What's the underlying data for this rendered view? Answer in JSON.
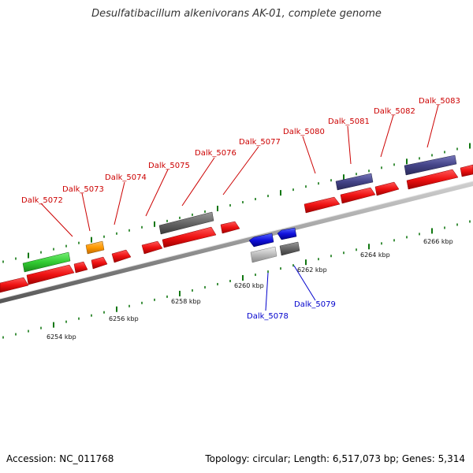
{
  "header": {
    "title": "Desulfatibacillum alkenivorans AK-01, complete genome"
  },
  "footer": {
    "accession": "Accession: NC_011768",
    "summary": "Topology: circular; Length: 6,517,073 bp; Genes: 5,314"
  },
  "colors": {
    "cds_red": "#ee1111",
    "green": "#33cc33",
    "orange": "#ff9900",
    "dark_gray": "#666666",
    "light_gray": "#bbbbbb",
    "blue": "#1111dd",
    "purple": "#444488",
    "tick_green": "#117711",
    "label_red": "#cc0000",
    "label_blue": "#0000cc"
  },
  "scale_labels": [
    {
      "text": "6254 kbp"
    },
    {
      "text": "6256 kbp"
    },
    {
      "text": "6258 kbp"
    },
    {
      "text": "6260 kbp"
    },
    {
      "text": "6262 kbp"
    },
    {
      "text": "6264 kbp"
    },
    {
      "text": "6266 kbp"
    }
  ],
  "gene_labels": [
    {
      "text": "Dalk_5072",
      "strand": "forward"
    },
    {
      "text": "Dalk_5073",
      "strand": "forward"
    },
    {
      "text": "Dalk_5074",
      "strand": "forward"
    },
    {
      "text": "Dalk_5075",
      "strand": "forward"
    },
    {
      "text": "Dalk_5076",
      "strand": "forward"
    },
    {
      "text": "Dalk_5077",
      "strand": "forward"
    },
    {
      "text": "Dalk_5080",
      "strand": "forward"
    },
    {
      "text": "Dalk_5081",
      "strand": "forward"
    },
    {
      "text": "Dalk_5082",
      "strand": "forward"
    },
    {
      "text": "Dalk_5083",
      "strand": "forward"
    },
    {
      "text": "Dalk_5078",
      "strand": "reverse"
    },
    {
      "text": "Dalk_5079",
      "strand": "reverse"
    }
  ]
}
